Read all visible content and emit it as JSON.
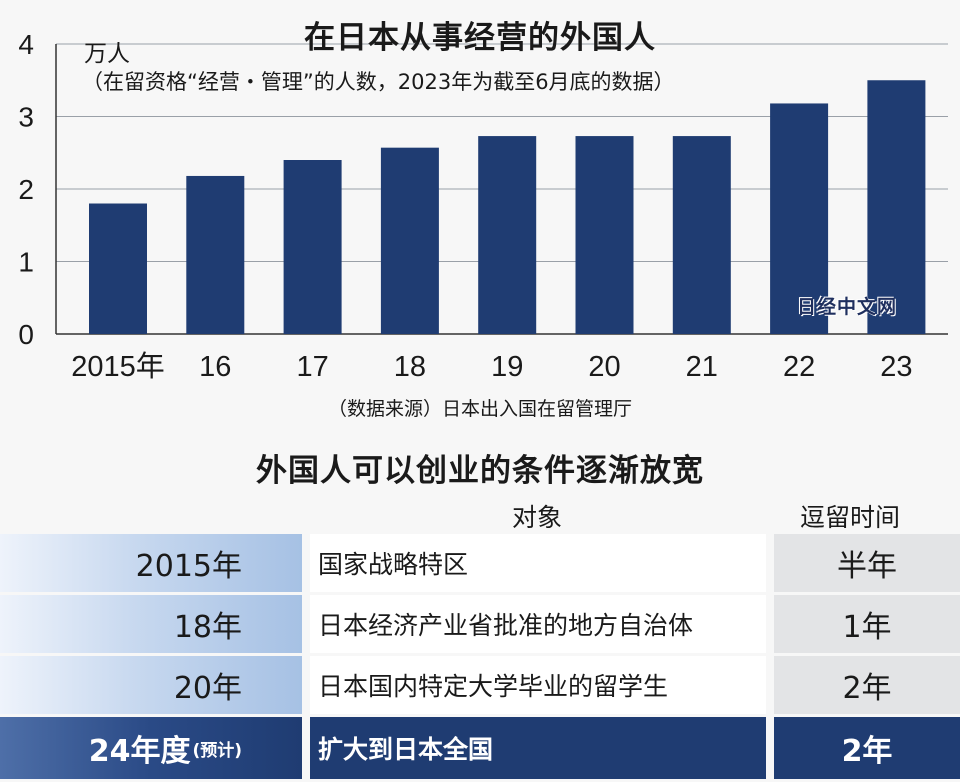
{
  "chart_data": {
    "type": "bar",
    "title": "在日本从事经营的外国人",
    "unit": "万人",
    "subtitle": "（在留资格“经营・管理”的人数，2023年为截至6月底的数据）",
    "categories": [
      "2015年",
      "16",
      "17",
      "18",
      "19",
      "20",
      "21",
      "22",
      "23"
    ],
    "values": [
      1.8,
      2.18,
      2.4,
      2.57,
      2.73,
      2.73,
      2.73,
      3.18,
      3.5
    ],
    "yticks": [
      "0",
      "1",
      "2",
      "3",
      "4"
    ],
    "ylim": [
      0,
      4
    ],
    "bar_color": "#1f3c72",
    "grid": true
  },
  "watermark": "日经中文网",
  "source": "（数据来源）日本出入国在留管理厅",
  "table": {
    "title": "外国人可以创业的条件逐渐放宽",
    "headers": {
      "subject": "对象",
      "stay": "逗留时间"
    },
    "rows": [
      {
        "year": "2015年",
        "subject": "国家战略特区",
        "stay": "半年"
      },
      {
        "year": "18年",
        "subject": "日本经济产业省批准的地方自治体",
        "stay": "1年"
      },
      {
        "year": "20年",
        "subject": "日本国内特定大学毕业的留学生",
        "stay": "2年"
      },
      {
        "year": "24年度",
        "note": "(预计)",
        "subject": "扩大到日本全国",
        "stay": "2年"
      }
    ],
    "highlight_color": "#1f3c72"
  }
}
